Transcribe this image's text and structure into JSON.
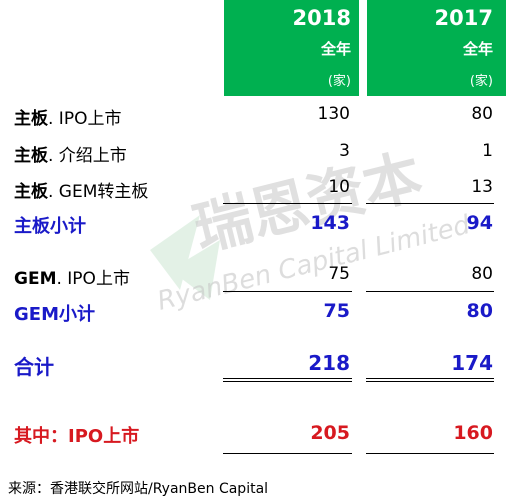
{
  "header": {
    "col2018": {
      "year": "2018",
      "period": "全年",
      "unit": "(家)"
    },
    "col2017": {
      "year": "2017",
      "period": "全年",
      "unit": "(家)"
    }
  },
  "rows": [
    {
      "label_bold": "主板",
      "label_rest": ". IPO上市",
      "v2018": "130",
      "v2017": "80"
    },
    {
      "label_bold": "主板",
      "label_rest": ". 介绍上市",
      "v2018": "3",
      "v2017": "1"
    },
    {
      "label_bold": "主板",
      "label_rest": ". GEM转主板",
      "v2018": "10",
      "v2017": "13"
    }
  ],
  "subtotal_main": {
    "label": "主板小计",
    "v2018": "143",
    "v2017": "94"
  },
  "gem_row": {
    "label_bold": "GEM",
    "label_rest": ". IPO上市",
    "v2018": "75",
    "v2017": "80"
  },
  "subtotal_gem": {
    "label": "GEM小计",
    "v2018": "75",
    "v2017": "80"
  },
  "total": {
    "label": "合计",
    "v2018": "218",
    "v2017": "174"
  },
  "ipo_total": {
    "label": "其中：IPO上市",
    "v2018": "205",
    "v2017": "160"
  },
  "source": "来源：香港联交所网站/RyanBen Capital",
  "watermark": {
    "cn": "瑞恩资本",
    "en": "RyanBen Capital Limited"
  },
  "colors": {
    "header_green": "#00b050",
    "subtotal_blue": "#1a1ac8",
    "highlight_red": "#d71920"
  }
}
